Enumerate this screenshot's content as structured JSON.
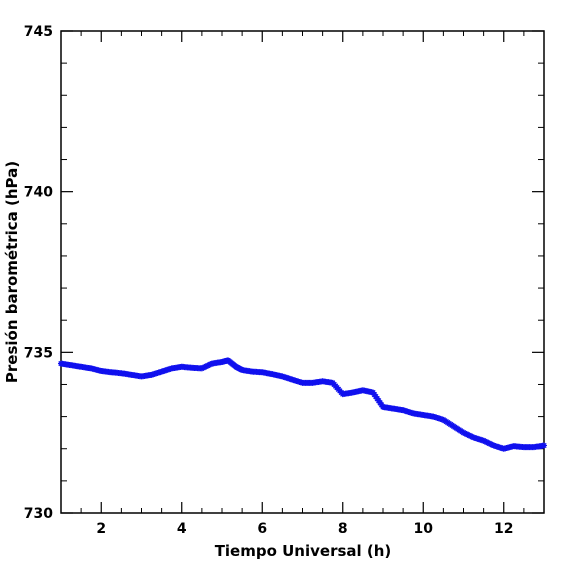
{
  "chart_data": {
    "type": "scatter",
    "title": "",
    "xlabel": "Tiempo Universal (h)",
    "ylabel": "Presión barométrica (hPa)",
    "xlim": [
      1,
      13
    ],
    "ylim": [
      730,
      745
    ],
    "x_ticks": [
      2,
      4,
      6,
      8,
      10,
      12
    ],
    "y_ticks": [
      730,
      735,
      740,
      745
    ],
    "grid": false,
    "legend": "none",
    "marker_color": "#1010ee",
    "series": [
      {
        "x": [
          1.0,
          1.25,
          1.5,
          1.75,
          2.0,
          2.25,
          2.5,
          2.75,
          3.0,
          3.25,
          3.5,
          3.75,
          4.0,
          4.25,
          4.5,
          4.75,
          5.0,
          5.15,
          5.35,
          5.5,
          5.75,
          6.0,
          6.25,
          6.5,
          6.75,
          7.0,
          7.25,
          7.5,
          7.75,
          8.0,
          8.25,
          8.5,
          8.75,
          9.0,
          9.25,
          9.5,
          9.75,
          10.0,
          10.25,
          10.5,
          10.75,
          11.0,
          11.25,
          11.5,
          11.75,
          12.0,
          12.25,
          12.5,
          12.75,
          13.0
        ],
        "y": [
          734.65,
          734.6,
          734.55,
          734.5,
          734.42,
          734.38,
          734.35,
          734.3,
          734.25,
          734.3,
          734.4,
          734.5,
          734.55,
          734.52,
          734.5,
          734.65,
          734.7,
          734.75,
          734.55,
          734.45,
          734.4,
          734.38,
          734.32,
          734.25,
          734.15,
          734.05,
          734.05,
          734.1,
          734.05,
          733.7,
          733.75,
          733.82,
          733.75,
          733.3,
          733.25,
          733.2,
          733.1,
          733.05,
          733.0,
          732.9,
          732.7,
          732.5,
          732.35,
          732.25,
          732.1,
          732.0,
          732.08,
          732.05,
          732.05,
          732.1
        ]
      }
    ]
  }
}
